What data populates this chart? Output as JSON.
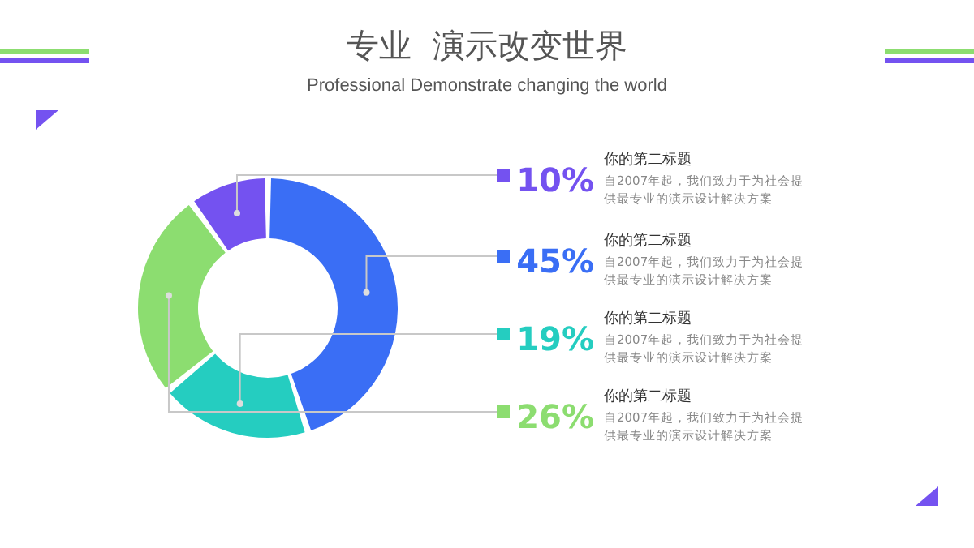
{
  "chart_data": {
    "type": "donut",
    "title": "专业  演示改变世界",
    "subtitle": "Professional Demonstrate changing the world",
    "categories": [
      "你的第二标题",
      "你的第二标题",
      "你的第二标题",
      "你的第二标题"
    ],
    "values": [
      10,
      45,
      19,
      26
    ],
    "colors": [
      "#7452f0",
      "#3a6ef5",
      "#25cdc0",
      "#8cdd70"
    ],
    "value_labels": [
      "10%",
      "45%",
      "19%",
      "26%"
    ],
    "annotations": [
      "自2007年起，我们致力于为社会提供最专业的演示设计解决方案",
      "自2007年起，我们致力于为社会提供最专业的演示设计解决方案",
      "自2007年起，我们致力于为社会提供最专业的演示设计解决方案",
      "自2007年起，我们致力于为社会提供最专业的演示设计解决方案"
    ],
    "legend": false
  }
}
